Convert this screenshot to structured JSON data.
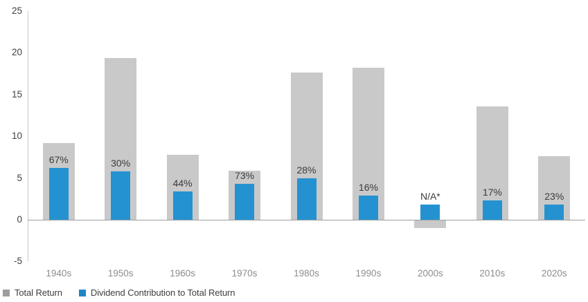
{
  "chart_data": {
    "type": "bar",
    "title": "",
    "xlabel": "",
    "ylabel": "",
    "categories": [
      "1940s",
      "1950s",
      "1960s",
      "1970s",
      "1980s",
      "1990s",
      "2000s",
      "2010s",
      "2020s"
    ],
    "series": [
      {
        "name": "Total Return",
        "color": "#c9c9ca",
        "values": [
          9.2,
          19.4,
          7.8,
          5.9,
          17.6,
          18.2,
          -0.9,
          13.6,
          7.6
        ]
      },
      {
        "name": "Dividend Contribution to Total Return",
        "color": "#2492d0",
        "values": [
          6.2,
          5.8,
          3.4,
          4.3,
          5.0,
          2.9,
          1.8,
          2.3,
          1.8
        ]
      }
    ],
    "bar_labels": [
      "67%",
      "30%",
      "44%",
      "73%",
      "28%",
      "16%",
      "N/A*",
      "17%",
      "23%"
    ],
    "y_ticks": [
      25,
      20,
      15,
      10,
      5,
      0,
      -5
    ],
    "ylim": [
      -5,
      25
    ],
    "grid": false,
    "legend_position": "bottom-left"
  },
  "legend": {
    "total_return_swatch_color": "#9d9d9d",
    "dividend_swatch_color": "#1f86c6"
  },
  "colors": {
    "total_return_bar": "#c9c9ca",
    "dividend_bar": "#2492d0",
    "axis_line": "#c6c6c6",
    "zero_line": "#9d9d9d",
    "y_tick_text": "#404040",
    "x_label_text": "#8c8c8c",
    "bar_label_text": "#3a3a3a"
  }
}
